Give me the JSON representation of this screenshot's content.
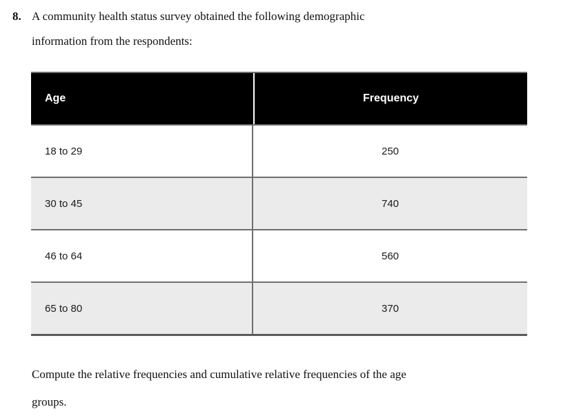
{
  "question": {
    "number": "8.",
    "lines": [
      "A community health status survey obtained the following demographic",
      "information from the respondents:"
    ]
  },
  "table": {
    "columns": [
      "Age",
      "Frequency"
    ],
    "rows": [
      {
        "age": "18 to 29",
        "frequency": "250"
      },
      {
        "age": "30 to 45",
        "frequency": "740"
      },
      {
        "age": "46 to 64",
        "frequency": "560"
      },
      {
        "age": "65 to 80",
        "frequency": "370"
      }
    ]
  },
  "instruction": {
    "lines": [
      "Compute the relative frequencies and cumulative relative frequencies of the age",
      "groups."
    ]
  },
  "colors": {
    "header_bg": "#000000",
    "header_text": "#ffffff",
    "alt_row_bg": "#ebebeb",
    "border": "#6e6e6e",
    "text": "#111111"
  }
}
